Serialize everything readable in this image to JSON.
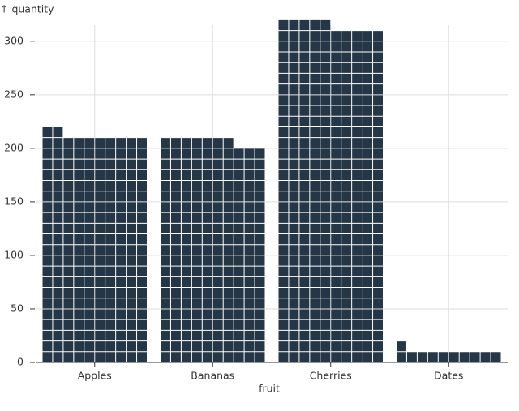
{
  "chart_data": {
    "type": "waffle",
    "x_label": "fruit",
    "y_label": "↑ quantity",
    "categories": [
      "Apples",
      "Bananas",
      "Cherries",
      "Dates"
    ],
    "values": [
      212,
      207,
      315,
      11
    ],
    "color": "#253746",
    "ylim": [
      0,
      315
    ],
    "yticks": [
      0,
      50,
      100,
      150,
      200,
      250,
      300
    ],
    "grid": true
  }
}
